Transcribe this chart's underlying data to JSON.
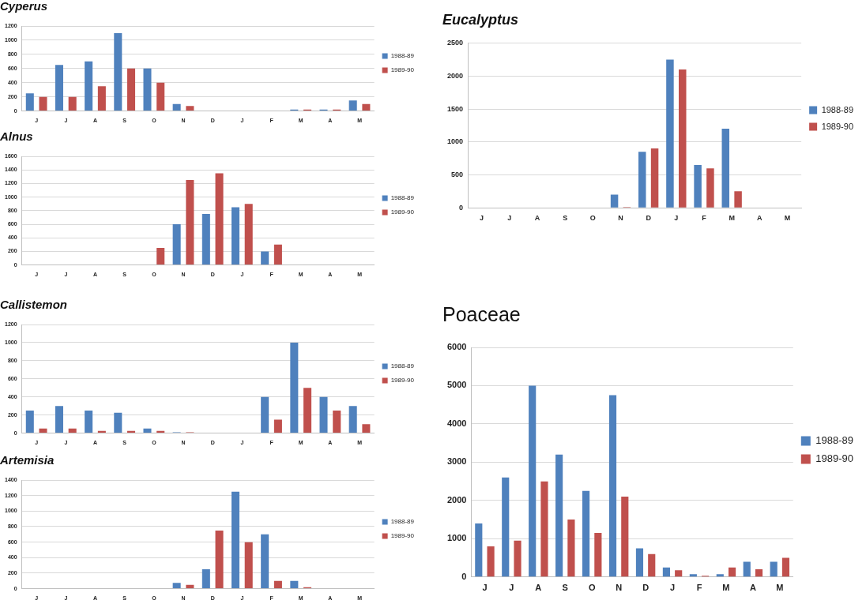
{
  "chart_data": [
    {
      "type": "bar",
      "title": "Cyperus",
      "categories": [
        "J",
        "J",
        "A",
        "S",
        "O",
        "N",
        "D",
        "J",
        "F",
        "M",
        "A",
        "M"
      ],
      "ylim": [
        0,
        1200
      ],
      "yticks": [
        0,
        200,
        400,
        600,
        800,
        1000,
        1200
      ],
      "grid": "y",
      "legend": "right",
      "series": [
        {
          "name": "1988-89",
          "color": "#4f81bd",
          "values": [
            250,
            650,
            700,
            1100,
            600,
            100,
            0,
            0,
            0,
            20,
            20,
            150
          ]
        },
        {
          "name": "1989-90",
          "color": "#c0504d",
          "values": [
            200,
            200,
            350,
            600,
            400,
            70,
            0,
            0,
            0,
            20,
            20,
            100
          ]
        }
      ]
    },
    {
      "type": "bar",
      "title": "Alnus",
      "categories": [
        "J",
        "J",
        "A",
        "S",
        "O",
        "N",
        "D",
        "J",
        "F",
        "M",
        "A",
        "M"
      ],
      "ylim": [
        0,
        1600
      ],
      "yticks": [
        0,
        200,
        400,
        600,
        800,
        1000,
        1200,
        1400,
        1600
      ],
      "grid": "y",
      "legend": "right",
      "series": [
        {
          "name": "1988-89",
          "color": "#4f81bd",
          "values": [
            0,
            0,
            0,
            0,
            0,
            600,
            750,
            850,
            200,
            0,
            0,
            0
          ]
        },
        {
          "name": "1989-90",
          "color": "#c0504d",
          "values": [
            0,
            0,
            0,
            0,
            250,
            1250,
            1350,
            900,
            300,
            0,
            0,
            0
          ]
        }
      ]
    },
    {
      "type": "bar",
      "title": "Callistemon",
      "categories": [
        "J",
        "J",
        "A",
        "S",
        "O",
        "N",
        "D",
        "J",
        "F",
        "M",
        "A",
        "M"
      ],
      "ylim": [
        0,
        1200
      ],
      "yticks": [
        0,
        200,
        400,
        600,
        800,
        1000,
        1200
      ],
      "grid": "y",
      "legend": "right",
      "series": [
        {
          "name": "1988-89",
          "color": "#4f81bd",
          "values": [
            250,
            300,
            250,
            225,
            50,
            10,
            0,
            0,
            400,
            1000,
            400,
            300
          ]
        },
        {
          "name": "1989-90",
          "color": "#c0504d",
          "values": [
            50,
            50,
            25,
            25,
            25,
            10,
            0,
            0,
            150,
            500,
            250,
            100
          ]
        }
      ]
    },
    {
      "type": "bar",
      "title": "Artemisia",
      "categories": [
        "J",
        "J",
        "A",
        "S",
        "O",
        "N",
        "D",
        "J",
        "F",
        "M",
        "A",
        "M"
      ],
      "ylim": [
        0,
        1400
      ],
      "yticks": [
        0,
        200,
        400,
        600,
        800,
        1000,
        1200,
        1400
      ],
      "grid": "y",
      "legend": "right",
      "series": [
        {
          "name": "1988-89",
          "color": "#4f81bd",
          "values": [
            0,
            0,
            0,
            0,
            0,
            75,
            250,
            1250,
            700,
            100,
            0,
            0
          ]
        },
        {
          "name": "1989-90",
          "color": "#c0504d",
          "values": [
            0,
            0,
            0,
            0,
            0,
            50,
            750,
            600,
            100,
            20,
            0,
            0
          ]
        }
      ]
    },
    {
      "type": "bar",
      "title": "Eucalyptus",
      "categories": [
        "J",
        "J",
        "A",
        "S",
        "O",
        "N",
        "D",
        "J",
        "F",
        "M",
        "A",
        "M"
      ],
      "ylim": [
        0,
        2500
      ],
      "yticks": [
        0,
        500,
        1000,
        1500,
        2000,
        2500
      ],
      "grid": "y",
      "legend": "right",
      "series": [
        {
          "name": "1988-89",
          "color": "#4f81bd",
          "values": [
            0,
            0,
            0,
            0,
            0,
            200,
            850,
            2250,
            650,
            1200,
            0,
            0
          ]
        },
        {
          "name": "1989-90",
          "color": "#c0504d",
          "values": [
            0,
            0,
            0,
            0,
            0,
            10,
            900,
            2100,
            600,
            250,
            0,
            0
          ]
        }
      ]
    },
    {
      "type": "bar",
      "title": "Poaceae",
      "categories": [
        "J",
        "J",
        "A",
        "S",
        "O",
        "N",
        "D",
        "J",
        "F",
        "M",
        "A",
        "M"
      ],
      "ylim": [
        0,
        6000
      ],
      "yticks": [
        0,
        1000,
        2000,
        3000,
        4000,
        5000,
        6000
      ],
      "grid": "y",
      "legend": "right",
      "series": [
        {
          "name": "1988-89",
          "color": "#4f81bd",
          "values": [
            1400,
            2600,
            5000,
            3200,
            2250,
            4750,
            750,
            250,
            75,
            75,
            400,
            400
          ]
        },
        {
          "name": "1989-90",
          "color": "#c0504d",
          "values": [
            800,
            950,
            2500,
            1500,
            1150,
            2100,
            600,
            175,
            30,
            250,
            200,
            500
          ]
        }
      ]
    }
  ]
}
